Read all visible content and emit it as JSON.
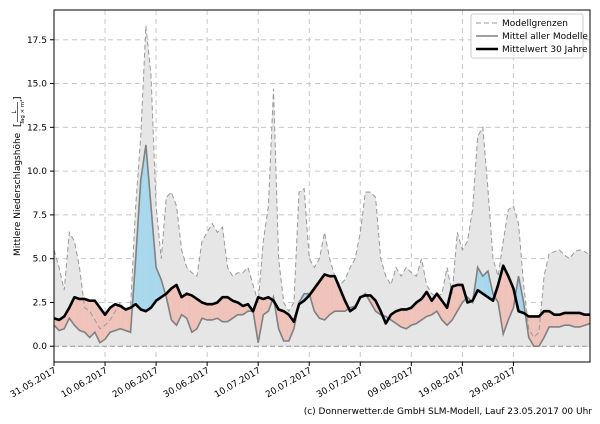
{
  "chart_data": {
    "type": "line",
    "ylabel": "Mittlere Niederschlagshöhe [L/(Tag × m²)]",
    "ylabel_text": "Mittlere Niederschlagshöhe",
    "ylabel_unit_num": "L",
    "ylabel_unit_den": "Tag × m²",
    "x_start": "2017-05-31",
    "x_end": "2017-09-14",
    "ylim": [
      -0.9,
      19.2
    ],
    "yticks": [
      "0.0",
      "2.5",
      "5.0",
      "7.5",
      "10.0",
      "12.5",
      "15.0",
      "17.5"
    ],
    "yticks_values": [
      0,
      2.5,
      5,
      7.5,
      10,
      12.5,
      15,
      17.5
    ],
    "xticks": [
      "31.05.2017",
      "10.06.2017",
      "20.06.2017",
      "30.06.2017",
      "10.07.2017",
      "20.07.2017",
      "30.07.2017",
      "09.08.2017",
      "19.08.2017",
      "29.08.2017"
    ],
    "xticks_days": [
      0,
      10,
      20,
      30,
      40,
      50,
      60,
      70,
      80,
      90
    ],
    "grid": true,
    "legend_position": "top-right",
    "legend": [
      "Modellgrenzen",
      "Mittel aller Modelle",
      "Mittelwert 30 Jahre"
    ],
    "colors": {
      "band_fill": "#e6e6e6",
      "band_edge": "#999999",
      "mean_line": "#808080",
      "climate_line": "#000000",
      "wetter_fill": "#a8d8ee",
      "drier_fill": "#efc3ba",
      "grid": "#c8c8c8"
    },
    "series_x_days": [
      0,
      1,
      2,
      3,
      4,
      5,
      6,
      7,
      8,
      9,
      10,
      11,
      12,
      13,
      14,
      15,
      16,
      17,
      18,
      19,
      20,
      21,
      22,
      23,
      24,
      25,
      26,
      27,
      28,
      29,
      30,
      31,
      32,
      33,
      34,
      35,
      36,
      37,
      38,
      39,
      40,
      41,
      42,
      43,
      44,
      45,
      46,
      47,
      48,
      49,
      50,
      51,
      52,
      53,
      54,
      55,
      56,
      57,
      58,
      59,
      60,
      61,
      62,
      63,
      64,
      65,
      66,
      67,
      68,
      69,
      70,
      71,
      72,
      73,
      74,
      75,
      76,
      77,
      78,
      79,
      80,
      81,
      82,
      83,
      84,
      85,
      86,
      87,
      88,
      89,
      90,
      91,
      92,
      93,
      94,
      95,
      96,
      97,
      98,
      99,
      100,
      101,
      102,
      103,
      104,
      105
    ],
    "series": [
      {
        "name": "Modellgrenzen (max)",
        "values": [
          5.5,
          4.5,
          3.2,
          6.5,
          6.0,
          4.5,
          2.2,
          2.0,
          1.5,
          1.0,
          1.2,
          1.5,
          2.0,
          2.5,
          2.0,
          2.2,
          8.0,
          12.0,
          18.3,
          15.5,
          8.0,
          5.0,
          8.5,
          8.8,
          8.0,
          5.5,
          4.5,
          4.2,
          4.0,
          6.0,
          6.5,
          7.0,
          6.5,
          6.8,
          4.5,
          4.0,
          4.2,
          4.2,
          4.5,
          3.5,
          2.5,
          6.0,
          8.0,
          14.7,
          5.0,
          2.5,
          2.0,
          2.5,
          8.8,
          9.0,
          5.0,
          4.5,
          5.0,
          6.5,
          5.0,
          4.0,
          3.5,
          3.8,
          4.5,
          5.0,
          6.5,
          8.8,
          8.8,
          8.5,
          5.0,
          4.0,
          3.5,
          4.5,
          4.0,
          4.5,
          4.2,
          4.0,
          5.0,
          3.5,
          3.0,
          2.8,
          3.0,
          4.5,
          3.0,
          6.5,
          5.5,
          6.0,
          7.8,
          12.0,
          12.5,
          9.0,
          5.0,
          4.0,
          6.0,
          7.8,
          8.0,
          7.0,
          3.5,
          1.0,
          0.5,
          0.8,
          4.0,
          5.3,
          5.4,
          5.5,
          5.2,
          5.0,
          5.4,
          5.5,
          5.4,
          5.2
        ]
      },
      {
        "name": "Modellgrenzen (min)",
        "values": [
          0.0,
          0.0,
          0.0,
          0.0,
          0.0,
          0.0,
          0.0,
          0.0,
          0.0,
          0.0,
          0.0,
          0.0,
          0.0,
          0.0,
          0.0,
          0.0,
          0.0,
          0.0,
          0.0,
          0.0,
          0.0,
          0.0,
          0.0,
          0.0,
          0.0,
          0.0,
          0.0,
          0.0,
          0.0,
          0.0,
          0.0,
          0.0,
          0.0,
          0.0,
          0.0,
          0.0,
          0.0,
          0.0,
          0.0,
          0.0,
          0.0,
          0.0,
          0.0,
          0.0,
          0.0,
          0.0,
          0.0,
          0.0,
          0.0,
          0.0,
          0.0,
          0.0,
          0.0,
          0.0,
          0.0,
          0.0,
          0.0,
          0.0,
          0.0,
          0.0,
          0.0,
          0.0,
          0.0,
          0.0,
          0.0,
          0.0,
          0.0,
          0.0,
          0.0,
          0.0,
          0.0,
          0.0,
          0.0,
          0.0,
          0.0,
          0.0,
          0.0,
          0.0,
          0.0,
          0.0,
          0.0,
          0.0,
          0.0,
          0.0,
          0.0,
          0.0,
          0.0,
          0.0,
          0.0,
          0.0,
          0.0,
          0.0,
          0.0,
          0.0,
          0.0,
          0.0,
          0.0,
          0.0,
          0.0,
          0.0,
          0.0,
          0.0,
          0.0,
          0.0,
          0.0,
          0.0
        ]
      },
      {
        "name": "Mittel aller Modelle",
        "values": [
          1.2,
          0.9,
          1.0,
          1.6,
          1.2,
          0.9,
          0.8,
          0.5,
          0.8,
          0.2,
          0.4,
          0.8,
          0.9,
          1.0,
          0.9,
          0.8,
          5.0,
          9.5,
          11.5,
          8.0,
          4.5,
          3.8,
          2.8,
          1.5,
          1.2,
          1.8,
          1.6,
          0.8,
          1.0,
          1.6,
          1.5,
          1.5,
          1.6,
          1.4,
          1.4,
          1.6,
          1.8,
          1.8,
          2.0,
          2.0,
          0.2,
          1.8,
          2.0,
          2.8,
          1.0,
          0.3,
          0.3,
          1.0,
          2.5,
          3.0,
          3.0,
          2.0,
          1.6,
          1.5,
          1.8,
          2.0,
          2.0,
          2.0,
          2.2,
          2.3,
          2.8,
          3.0,
          2.5,
          2.0,
          1.8,
          1.7,
          1.5,
          1.3,
          1.1,
          1.0,
          1.2,
          1.3,
          1.5,
          1.7,
          1.8,
          2.0,
          1.5,
          1.2,
          1.5,
          2.0,
          2.5,
          2.8,
          2.5,
          4.5,
          4.0,
          4.3,
          3.0,
          2.5,
          0.7,
          1.5,
          2.2,
          4.0,
          2.5,
          0.5,
          0.0,
          0.0,
          0.5,
          1.1,
          1.1,
          1.1,
          1.2,
          1.2,
          1.1,
          1.1,
          1.2,
          1.3
        ]
      },
      {
        "name": "Mittelwert 30 Jahre",
        "values": [
          1.6,
          1.5,
          1.7,
          2.2,
          2.8,
          2.7,
          2.7,
          2.6,
          2.6,
          2.2,
          1.8,
          2.2,
          2.4,
          2.3,
          2.1,
          2.2,
          2.4,
          2.1,
          2.0,
          2.2,
          2.6,
          2.8,
          3.0,
          3.3,
          3.5,
          2.8,
          3.0,
          2.9,
          2.7,
          2.5,
          2.4,
          2.4,
          2.5,
          2.8,
          2.8,
          2.6,
          2.5,
          2.3,
          2.4,
          2.0,
          2.8,
          2.7,
          2.8,
          2.6,
          2.1,
          2.0,
          1.8,
          1.4,
          2.4,
          2.6,
          2.9,
          3.3,
          3.7,
          4.1,
          4.0,
          4.0,
          3.3,
          2.6,
          2.0,
          2.2,
          2.8,
          2.9,
          2.9,
          2.6,
          2.0,
          1.3,
          1.8,
          2.0,
          2.1,
          2.1,
          2.2,
          2.5,
          2.7,
          3.1,
          2.6,
          3.0,
          2.6,
          2.2,
          3.4,
          3.5,
          3.5,
          2.5,
          2.6,
          3.2,
          3.0,
          2.8,
          2.6,
          3.5,
          4.6,
          4.0,
          3.3,
          2.0,
          1.9,
          1.7,
          1.7,
          1.7,
          2.0,
          2.0,
          1.8,
          1.8,
          1.9,
          1.9,
          1.9,
          1.9,
          1.8,
          1.8
        ]
      }
    ]
  },
  "footer": {
    "copyright": "(c) Donnerwetter.de GmbH SLM-Modell, Lauf 23.05.2017 00 Uhr"
  }
}
